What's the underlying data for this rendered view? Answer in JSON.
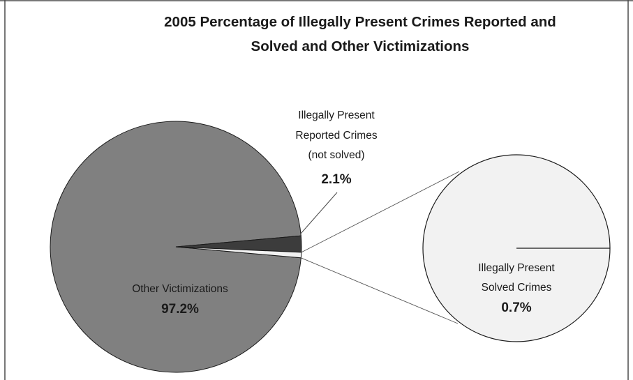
{
  "chart_data": {
    "type": "pie",
    "subtype": "pie-of-pie",
    "title": "2005 Percentage of Illegally Present Crimes Reported and Solved and Other Victimizations",
    "title_lines": [
      "2005 Percentage of Illegally Present Crimes Reported and",
      "Solved and Other Victimizations"
    ],
    "slices": [
      {
        "label_lines": [
          "Other Victimizations"
        ],
        "value": 97.2,
        "value_label": "97.2%",
        "color": "#808080"
      },
      {
        "label_lines": [
          "Illegally Present",
          "Reported Crimes",
          "(not solved)"
        ],
        "value": 2.1,
        "value_label": "2.1%",
        "color": "#3c3c3c"
      },
      {
        "label_lines": [
          "Illegally Present",
          "Solved Crimes"
        ],
        "value": 0.7,
        "value_label": "0.7%",
        "color": "#f2f2f2"
      }
    ],
    "legend": "none",
    "grid": false
  },
  "colors": {
    "background": "#ffffff",
    "border": "#4a4a4a",
    "stroke": "#1a1a1a",
    "text": "#1a1a1a"
  }
}
